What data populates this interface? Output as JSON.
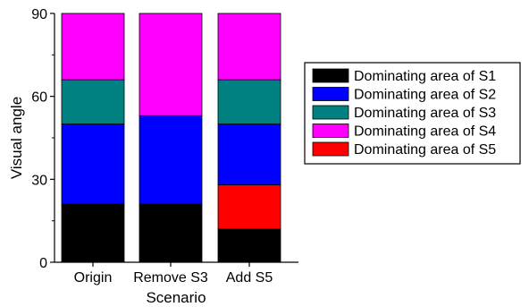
{
  "chart_data": {
    "type": "bar",
    "stacked": true,
    "xlabel": "Scenario",
    "ylabel": "Visual angle",
    "ylim": [
      0,
      90
    ],
    "yticks": [
      "0",
      "30",
      "60",
      "90"
    ],
    "categories": [
      "Origin",
      "Remove S3",
      "Add S5"
    ],
    "legend_position": "right",
    "series": [
      {
        "name": "Dominating area of S1",
        "color": "#000000",
        "values": [
          21,
          21,
          12
        ]
      },
      {
        "name": "Dominating area of S5",
        "color": "#ff0000",
        "values": [
          0,
          0,
          16
        ]
      },
      {
        "name": "Dominating area of S2",
        "color": "#0000ff",
        "values": [
          29,
          32,
          22
        ]
      },
      {
        "name": "Dominating area of S3",
        "color": "#008080",
        "values": [
          16,
          0,
          16
        ]
      },
      {
        "name": "Dominating area of S4",
        "color": "#ff00ff",
        "values": [
          24,
          37,
          24
        ]
      }
    ],
    "legend_order": [
      "Dominating area of S1",
      "Dominating area of S2",
      "Dominating area of S3",
      "Dominating area of S4",
      "Dominating area of S5"
    ]
  }
}
